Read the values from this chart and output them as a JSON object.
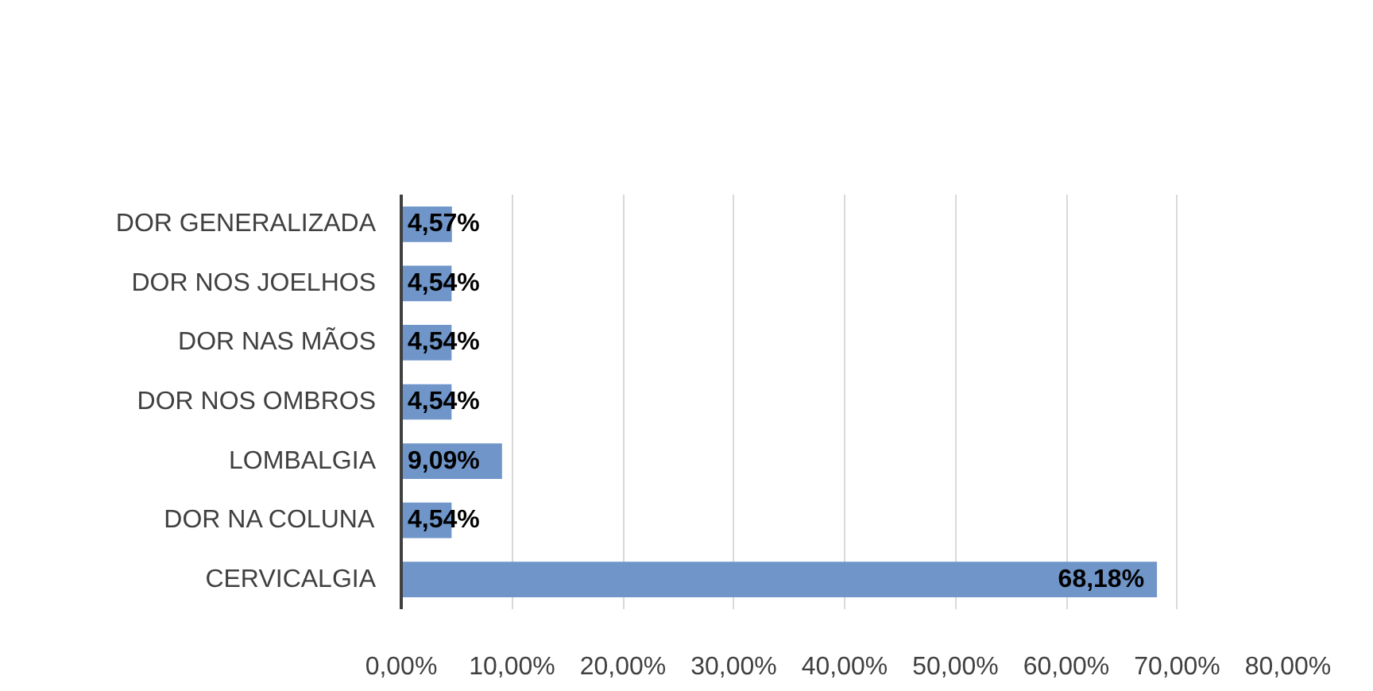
{
  "chart_data": {
    "type": "bar",
    "orientation": "horizontal",
    "categories": [
      "DOR GENERALIZADA",
      "DOR NOS JOELHOS",
      "DOR NAS MÃOS",
      "DOR NOS OMBROS",
      "LOMBALGIA",
      "DOR NA COLUNA",
      "CERVICALGIA"
    ],
    "values": [
      4.57,
      4.54,
      4.54,
      4.54,
      9.09,
      4.54,
      68.18
    ],
    "value_labels": [
      "4,57%",
      "4,54%",
      "4,54%",
      "4,54%",
      "9,09%",
      "4,54%",
      "68,18%"
    ],
    "color": "#6f95c9",
    "xlim": [
      0,
      80
    ],
    "xticks": [
      {
        "value": 0,
        "label": "0,00%"
      },
      {
        "value": 10,
        "label": "10,00%"
      },
      {
        "value": 20,
        "label": "20,00%"
      },
      {
        "value": 30,
        "label": "30,00%"
      },
      {
        "value": 40,
        "label": "40,00%"
      },
      {
        "value": 50,
        "label": "50,00%"
      },
      {
        "value": 60,
        "label": "60,00%"
      },
      {
        "value": 70,
        "label": "70,00%"
      },
      {
        "value": 80,
        "label": "80,00%"
      }
    ],
    "grid": "x"
  }
}
